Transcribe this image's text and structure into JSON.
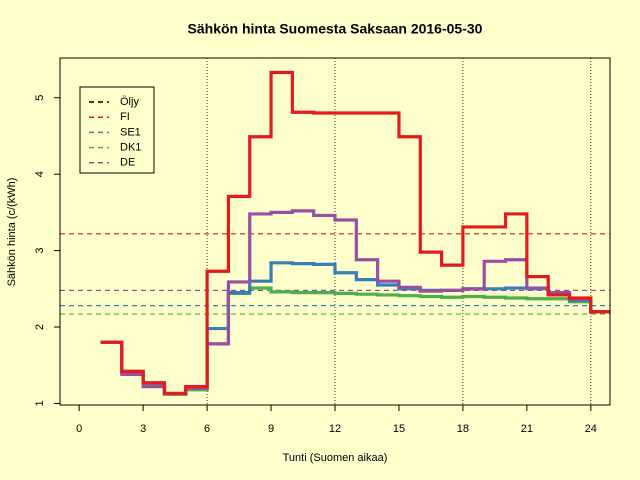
{
  "chart_data": {
    "type": "step",
    "title": "Sähkön hinta Suomesta Saksaan 2016-05-30",
    "xlabel": "Tunti (Suomen aikaa)",
    "ylabel": "Sähkön hinta (c/(kWh)",
    "x": [
      1,
      2,
      3,
      4,
      5,
      6,
      7,
      8,
      9,
      10,
      11,
      12,
      13,
      14,
      15,
      16,
      17,
      18,
      19,
      20,
      21,
      22,
      23,
      24,
      25
    ],
    "series": [
      {
        "name": "DK1",
        "color": "#4daf4a",
        "values": [
          1.8,
          1.4,
          1.25,
          1.12,
          1.18,
          1.78,
          2.44,
          2.51,
          2.46,
          2.45,
          2.45,
          2.44,
          2.43,
          2.42,
          2.41,
          2.4,
          2.39,
          2.4,
          2.39,
          2.38,
          2.37,
          2.37,
          2.33,
          2.2,
          2.2
        ]
      },
      {
        "name": "SE1",
        "color": "#377eb8",
        "values": [
          1.8,
          1.42,
          1.27,
          1.13,
          1.2,
          1.98,
          2.45,
          2.6,
          2.84,
          2.83,
          2.82,
          2.71,
          2.62,
          2.55,
          2.5,
          2.48,
          2.48,
          2.5,
          2.5,
          2.51,
          2.5,
          2.42,
          2.35,
          2.2,
          2.2
        ]
      },
      {
        "name": "DE",
        "color": "#984ea3",
        "values": [
          1.8,
          1.38,
          1.22,
          1.13,
          1.2,
          1.78,
          2.59,
          3.48,
          3.5,
          3.52,
          3.46,
          3.4,
          2.88,
          2.6,
          2.52,
          2.47,
          2.48,
          2.5,
          2.86,
          2.88,
          2.51,
          2.45,
          2.37,
          2.2,
          2.2
        ]
      },
      {
        "name": "FI",
        "color": "#e41a1c",
        "values": [
          1.8,
          1.42,
          1.27,
          1.13,
          1.22,
          2.73,
          3.71,
          4.49,
          5.33,
          4.81,
          4.8,
          4.8,
          4.8,
          4.8,
          4.49,
          2.98,
          2.81,
          3.31,
          3.31,
          3.48,
          2.66,
          2.42,
          2.38,
          2.2,
          2.2
        ]
      }
    ],
    "reference_lines": [
      {
        "color": "#e41a1c",
        "value": 3.22
      },
      {
        "color": "#377eb8",
        "value": 2.28
      },
      {
        "color": "#4daf4a",
        "value": 2.17
      },
      {
        "color": "#984ea3",
        "value": 2.48
      }
    ],
    "legend": [
      {
        "name": "Öljy",
        "color": "#000000"
      },
      {
        "name": "FI",
        "color": "#e41a1c"
      },
      {
        "name": "SE1",
        "color": "#377eb8"
      },
      {
        "name": "DK1",
        "color": "#4daf4a"
      },
      {
        "name": "DE",
        "color": "#984ea3"
      }
    ],
    "legend_position": "top-left",
    "xlim": [
      -0.9,
      24.9
    ],
    "ylim": [
      0.98,
      5.52
    ],
    "xticks": [
      0,
      3,
      6,
      9,
      12,
      15,
      18,
      21,
      24
    ],
    "yticks": [
      1,
      2,
      3,
      4,
      5
    ],
    "vgrid": [
      6,
      12,
      18,
      24
    ]
  }
}
